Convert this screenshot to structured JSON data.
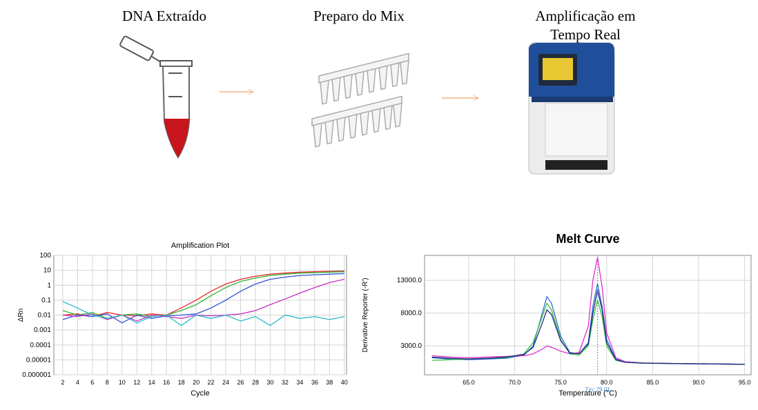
{
  "steps": [
    {
      "lines": [
        "DNA Extraído"
      ]
    },
    {
      "lines": [
        "Preparo do Mix"
      ]
    },
    {
      "lines": [
        "Amplificação  em",
        "Tempo Real"
      ]
    }
  ],
  "chart_data": [
    {
      "type": "line",
      "title": "Amplification Plot",
      "x_label": "Cycle",
      "y_label": "ΔRn",
      "log_y": true,
      "grid": true,
      "xlim": [
        0.8,
        40.3
      ],
      "xticks": [
        2,
        4,
        6,
        8,
        10,
        12,
        14,
        16,
        18,
        20,
        22,
        24,
        26,
        28,
        30,
        32,
        34,
        36,
        38,
        40
      ],
      "ylim": [
        1e-06,
        100
      ],
      "yticks": [
        1e-06,
        1e-05,
        0.0001,
        0.001,
        0.01,
        0.1,
        1,
        10,
        100
      ],
      "x": [
        2,
        4,
        6,
        8,
        10,
        12,
        14,
        16,
        18,
        20,
        22,
        24,
        26,
        28,
        30,
        32,
        34,
        36,
        38,
        40
      ],
      "series": [
        {
          "color": "#e8262b",
          "values": [
            0.01,
            0.012,
            0.008,
            0.015,
            0.01,
            0.009,
            0.012,
            0.01,
            0.03,
            0.1,
            0.4,
            1.2,
            2.5,
            4,
            5.5,
            6.5,
            7.5,
            8,
            8.5,
            9
          ]
        },
        {
          "color": "#2fb52f",
          "values": [
            0.02,
            0.01,
            0.015,
            0.006,
            0.01,
            0.012,
            0.008,
            0.01,
            0.02,
            0.05,
            0.2,
            0.7,
            1.8,
            3,
            4.5,
            5.5,
            6.5,
            7,
            7.5,
            8
          ]
        },
        {
          "color": "#2f4fd8",
          "values": [
            0.005,
            0.01,
            0.008,
            0.012,
            0.003,
            0.01,
            0.006,
            0.009,
            0.01,
            0.012,
            0.03,
            0.1,
            0.4,
            1.2,
            2.5,
            3.5,
            4.5,
            5,
            5.5,
            6
          ]
        },
        {
          "color": "#c42fc4",
          "values": [
            0.01,
            0.008,
            0.012,
            0.005,
            0.01,
            0.004,
            0.01,
            0.008,
            0.006,
            0.01,
            0.009,
            0.01,
            0.012,
            0.02,
            0.05,
            0.12,
            0.3,
            0.7,
            1.5,
            2.5
          ]
        },
        {
          "color": "#26b8c8",
          "values": [
            0.08,
            0.03,
            0.01,
            0.006,
            0.01,
            0.003,
            0.008,
            0.01,
            0.002,
            0.01,
            0.006,
            0.01,
            0.004,
            0.008,
            0.002,
            0.01,
            0.006,
            0.008,
            0.005,
            0.008
          ]
        }
      ]
    },
    {
      "type": "line",
      "title": "Melt Curve",
      "x_label": "Temperature (°C)",
      "y_label": "Derivative Reporter (-R')",
      "log_y": false,
      "grid": true,
      "xlim": [
        60.2,
        95.7
      ],
      "xticks": [
        {
          "value": 65,
          "label": "65.0"
        },
        {
          "value": 70,
          "label": "70.0"
        },
        {
          "value": 75,
          "label": "75.0"
        },
        {
          "value": 80,
          "label": "80.0"
        },
        {
          "value": 85,
          "label": "85.0"
        },
        {
          "value": 90,
          "label": "90.0"
        },
        {
          "value": 95,
          "label": "95.0"
        }
      ],
      "ylim": [
        -1400,
        16800
      ],
      "yticks": [
        {
          "value": 3000,
          "label": "3000.0"
        },
        {
          "value": 8000,
          "label": "8000.0"
        },
        {
          "value": 13000,
          "label": "13000.0"
        }
      ],
      "marker": {
        "x": 79.01,
        "label": "Tm: 79.01",
        "color": "#3a8fd8"
      },
      "x": [
        61,
        63,
        65,
        67,
        69,
        71,
        72,
        73,
        73.5,
        74,
        75,
        76,
        77,
        78,
        78.5,
        79,
        79.5,
        80,
        81,
        82,
        84,
        88,
        92,
        95
      ],
      "series": [
        {
          "color": "#2f6fd8",
          "values": [
            1200,
            1000,
            900,
            1000,
            1100,
            1600,
            3000,
            8000,
            10500,
            9500,
            4500,
            2000,
            1800,
            3500,
            9000,
            12500,
            9000,
            4000,
            1000,
            600,
            400,
            300,
            250,
            200
          ]
        },
        {
          "color": "#e02fc8",
          "values": [
            1500,
            1300,
            1200,
            1300,
            1400,
            1500,
            1800,
            2500,
            3000,
            2800,
            2200,
            1800,
            2000,
            6000,
            13000,
            16500,
            12000,
            5000,
            1200,
            600,
            400,
            300,
            250,
            200
          ]
        },
        {
          "color": "#3cc03c",
          "values": [
            800,
            900,
            1000,
            1100,
            1200,
            1800,
            3500,
            7500,
            9500,
            8500,
            4000,
            1800,
            1600,
            3000,
            7000,
            10000,
            7500,
            3000,
            800,
            500,
            350,
            300,
            250,
            200
          ]
        },
        {
          "color": "#1a2a80",
          "values": [
            1300,
            1100,
            1000,
            1100,
            1300,
            1700,
            2800,
            6500,
            8500,
            7800,
            3800,
            1900,
            1800,
            3300,
            8000,
            11500,
            8500,
            3500,
            900,
            500,
            380,
            300,
            250,
            200
          ]
        }
      ]
    }
  ]
}
